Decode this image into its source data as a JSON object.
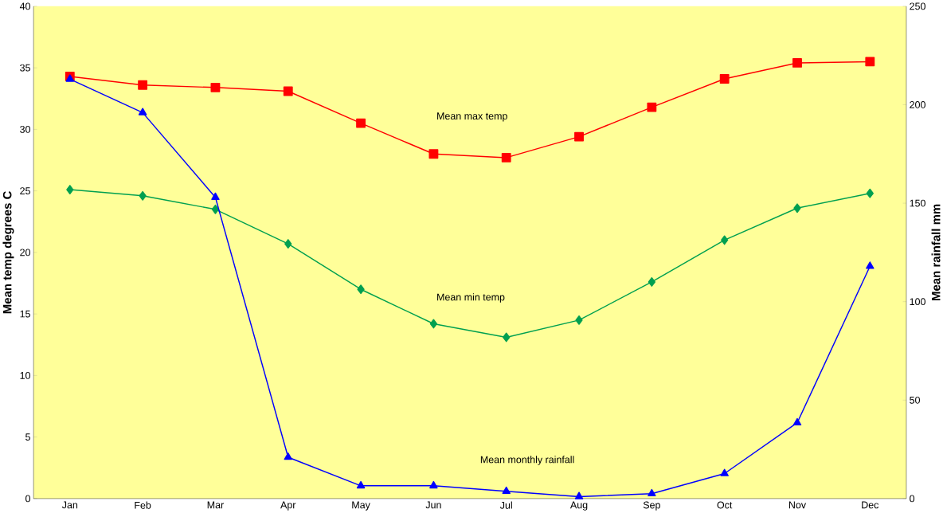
{
  "chart_data": {
    "type": "line",
    "categories": [
      "Jan",
      "Feb",
      "Mar",
      "Apr",
      "May",
      "Jun",
      "Jul",
      "Aug",
      "Sep",
      "Oct",
      "Nov",
      "Dec"
    ],
    "ylabel": "Mean temp degrees C",
    "y2label": "Mean rainfall mm",
    "ylim": [
      0,
      40
    ],
    "yticks": [
      0,
      5,
      10,
      15,
      20,
      25,
      30,
      35,
      40
    ],
    "y2lim": [
      0,
      250
    ],
    "y2ticks": [
      0,
      50,
      100,
      150,
      200,
      250
    ],
    "series": [
      {
        "name": "Mean max temp",
        "color": "#ff0000",
        "marker": "square",
        "values": [
          34.3,
          33.6,
          33.4,
          33.1,
          30.5,
          28.0,
          27.7,
          29.4,
          31.8,
          34.1,
          35.4,
          35.5
        ]
      },
      {
        "name": "Mean min temp",
        "color": "#00a050",
        "marker": "diamond",
        "values": [
          25.1,
          24.6,
          23.5,
          20.7,
          17.0,
          14.2,
          13.1,
          14.5,
          17.6,
          21.0,
          23.6,
          24.8
        ]
      },
      {
        "name": "Mean monthly rainfall",
        "color": "#0000ff",
        "marker": "triangle",
        "axis": "y2",
        "values": [
          213,
          196,
          153,
          21,
          6.5,
          6.5,
          3.7,
          1,
          2.5,
          12.7,
          38.5,
          118
        ]
      }
    ]
  }
}
